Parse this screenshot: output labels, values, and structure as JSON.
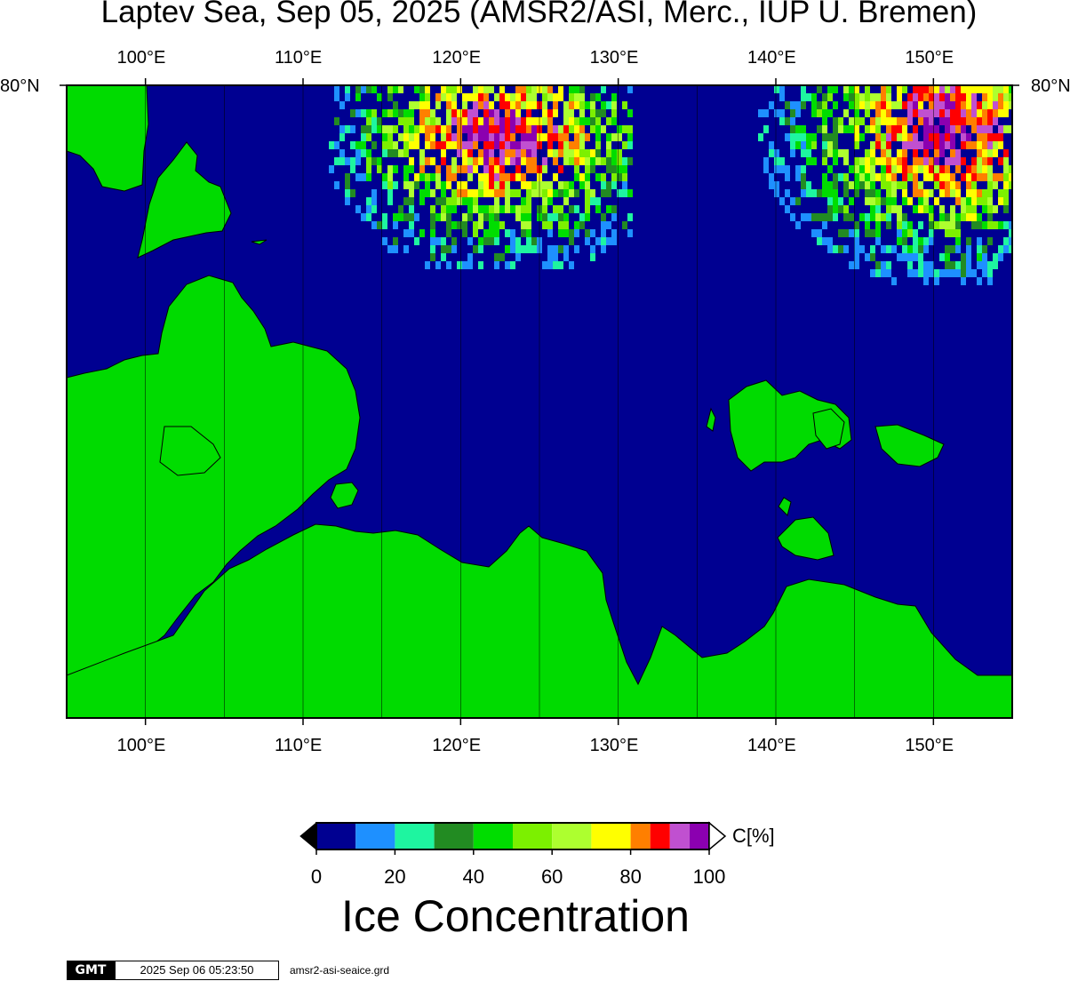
{
  "title": "Laptev Sea, Sep 05, 2025 (AMSR2/ASI, Merc., IUP U. Bremen)",
  "map": {
    "lon_range": [
      95,
      155
    ],
    "top_lat_label": "80°N",
    "lon_ticks": [
      {
        "lon": 100,
        "label": "100°E"
      },
      {
        "lon": 110,
        "label": "110°E"
      },
      {
        "lon": 120,
        "label": "120°E"
      },
      {
        "lon": 130,
        "label": "130°E"
      },
      {
        "lon": 140,
        "label": "140°E"
      },
      {
        "lon": 150,
        "label": "150°E"
      }
    ],
    "colors": {
      "ocean": "#000091",
      "land": "#00db00",
      "frame": "#000000"
    }
  },
  "colorbar": {
    "title": "Ice Concentration",
    "unit": "C[%]",
    "ticks": [
      {
        "value": 0,
        "label": "0"
      },
      {
        "value": 20,
        "label": "20"
      },
      {
        "value": 40,
        "label": "40"
      },
      {
        "value": 60,
        "label": "60"
      },
      {
        "value": 80,
        "label": "80"
      },
      {
        "value": 100,
        "label": "100"
      }
    ],
    "bins": [
      {
        "from": 0,
        "to": 10,
        "color": "#000091"
      },
      {
        "from": 10,
        "to": 20,
        "color": "#1e90ff"
      },
      {
        "from": 20,
        "to": 30,
        "color": "#1ef5a0"
      },
      {
        "from": 30,
        "to": 40,
        "color": "#228b22"
      },
      {
        "from": 40,
        "to": 50,
        "color": "#00dd00"
      },
      {
        "from": 50,
        "to": 60,
        "color": "#7cf000"
      },
      {
        "from": 60,
        "to": 70,
        "color": "#adff2f"
      },
      {
        "from": 70,
        "to": 80,
        "color": "#ffff00"
      },
      {
        "from": 80,
        "to": 85,
        "color": "#ff7f00"
      },
      {
        "from": 85,
        "to": 90,
        "color": "#ff0000"
      },
      {
        "from": 90,
        "to": 95,
        "color": "#c050d0"
      },
      {
        "from": 95,
        "to": 100,
        "color": "#8b00b0"
      }
    ]
  },
  "footer": {
    "logo": "GMT",
    "timestamp": "2025 Sep 06 05:23:50",
    "filename": "amsr2-asi-seaice.grd"
  }
}
